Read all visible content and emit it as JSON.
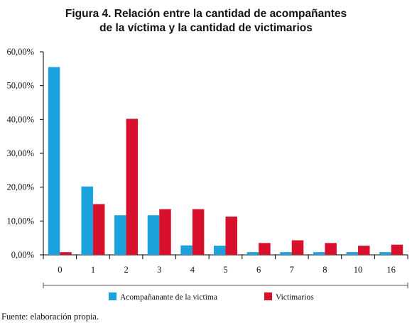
{
  "title_line1": "Figura 4. Relación entre la cantidad de acompañantes",
  "title_line2": "de la víctima y la cantidad de victimarios",
  "source": "Fuente: elaboración propia.",
  "chart_data": {
    "type": "bar",
    "categories": [
      "0",
      "1",
      "2",
      "3",
      "4",
      "5",
      "6",
      "7",
      "8",
      "10",
      "16"
    ],
    "series": [
      {
        "name": "Acompañanante de la victima",
        "color": "#1ba1dc",
        "values": [
          55.5,
          20.2,
          11.7,
          11.7,
          2.8,
          2.7,
          0.8,
          0.8,
          0.8,
          0.8,
          0.8
        ]
      },
      {
        "name": "Victimarios",
        "color": "#d8102c",
        "values": [
          0.8,
          15.0,
          40.2,
          13.5,
          13.5,
          11.3,
          3.5,
          4.3,
          3.5,
          2.7,
          3.0
        ]
      }
    ],
    "ylim": [
      0,
      60
    ],
    "yticks": [
      0,
      10,
      20,
      30,
      40,
      50,
      60
    ],
    "ytick_labels": [
      "0,00%",
      "10,00%",
      "20,00%",
      "30,00%",
      "40,00%",
      "50,00%",
      "60,00%"
    ],
    "legend_position": "bottom",
    "grid": false
  }
}
